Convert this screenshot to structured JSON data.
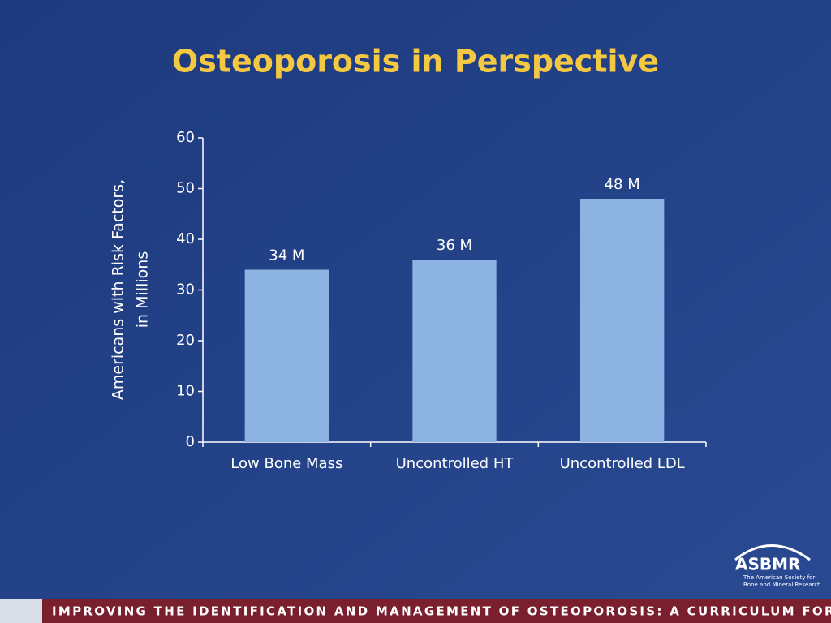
{
  "chart_data": {
    "type": "bar",
    "title": "Osteoporosis in Perspective",
    "ylabel": [
      "Americans with Risk Factors,",
      "in Millions"
    ],
    "categories": [
      "Low Bone Mass",
      "Uncontrolled HT",
      "Uncontrolled LDL"
    ],
    "values": [
      34,
      36,
      48
    ],
    "value_labels": [
      "34 M",
      "36 M",
      "48 M"
    ],
    "color": "#8db3e2",
    "ylim": [
      0,
      60
    ],
    "yticks": [
      0,
      10,
      20,
      30,
      40,
      50,
      60
    ]
  },
  "logo": {
    "name": "ASBMR",
    "lines": [
      "The American Society for",
      "Bone and Mineral Research"
    ]
  },
  "footer": "IMPROVING THE IDENTIFICATION AND MANAGEMENT OF OSTEOPOROSIS: A CURRICULUM FOR THE PCP"
}
